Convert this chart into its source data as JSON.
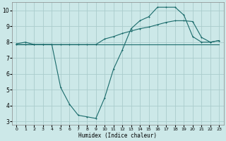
{
  "xlabel": "Humidex (Indice chaleur)",
  "xlim": [
    -0.5,
    23.5
  ],
  "ylim": [
    2.8,
    10.5
  ],
  "yticks": [
    3,
    4,
    5,
    6,
    7,
    8,
    9,
    10
  ],
  "xticks": [
    0,
    1,
    2,
    3,
    4,
    5,
    6,
    7,
    8,
    9,
    10,
    11,
    12,
    13,
    14,
    15,
    16,
    17,
    18,
    19,
    20,
    21,
    22,
    23
  ],
  "bg_color": "#cce8e8",
  "grid_color": "#aacccc",
  "line_color": "#1a6b6b",
  "line1_x": [
    0,
    1,
    2,
    3,
    4,
    5,
    6,
    7,
    8,
    9,
    10,
    11,
    12,
    13,
    14,
    15,
    16,
    17,
    18,
    19,
    20,
    21,
    22,
    23
  ],
  "line1_y": [
    7.9,
    8.0,
    7.85,
    7.85,
    7.85,
    7.85,
    7.85,
    7.85,
    7.85,
    7.85,
    8.2,
    8.35,
    8.55,
    8.7,
    8.85,
    8.95,
    9.1,
    9.25,
    9.35,
    9.35,
    9.3,
    8.3,
    8.0,
    8.1
  ],
  "line2_x": [
    0,
    1,
    2,
    3,
    4,
    5,
    6,
    7,
    8,
    9,
    10,
    11,
    12,
    13,
    14,
    15,
    16,
    17,
    18,
    19,
    20,
    21,
    22,
    23
  ],
  "line2_y": [
    7.85,
    7.85,
    7.85,
    7.85,
    7.85,
    5.15,
    4.1,
    3.4,
    3.3,
    3.2,
    4.5,
    6.3,
    7.5,
    8.85,
    9.35,
    9.6,
    10.2,
    10.2,
    10.2,
    9.7,
    8.35,
    8.0,
    8.0,
    8.1
  ],
  "line3_x": [
    0,
    1,
    2,
    3,
    4,
    5,
    6,
    7,
    8,
    9,
    10,
    11,
    12,
    13,
    14,
    15,
    16,
    17,
    18,
    19,
    20,
    21,
    22,
    23
  ],
  "line3_y": [
    7.85,
    7.85,
    7.85,
    7.85,
    7.85,
    7.85,
    7.85,
    7.85,
    7.85,
    7.85,
    7.85,
    7.85,
    7.85,
    7.85,
    7.85,
    7.85,
    7.85,
    7.85,
    7.85,
    7.85,
    7.85,
    7.85,
    7.85,
    7.85
  ]
}
